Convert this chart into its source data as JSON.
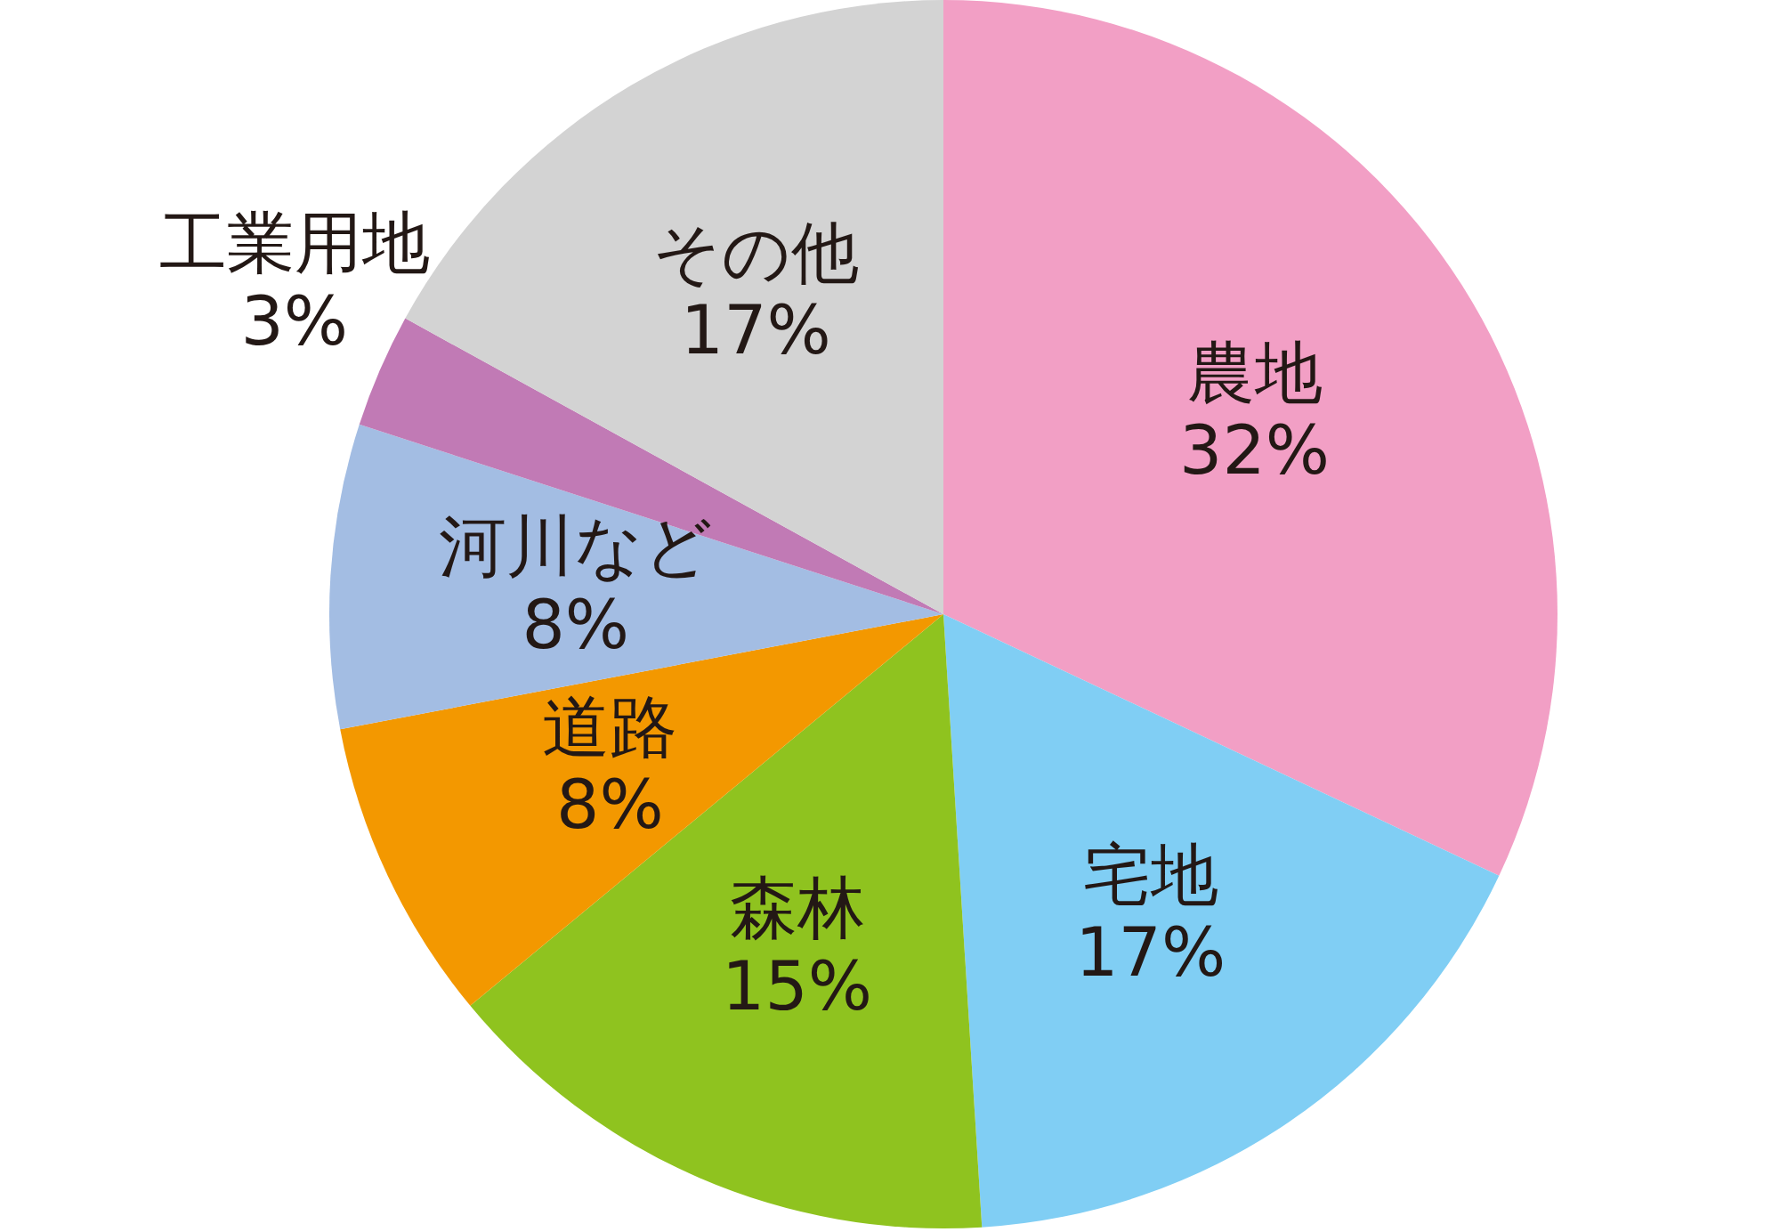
{
  "chart_data": {
    "type": "pie",
    "categories": [
      "農地",
      "宅地",
      "森林",
      "道路",
      "河川など",
      "工業用地",
      "その他"
    ],
    "values": [
      32,
      17,
      15,
      8,
      8,
      3,
      17
    ],
    "value_labels": [
      "32%",
      "17%",
      "15%",
      "8%",
      "8%",
      "3%",
      "17%"
    ],
    "colors": [
      "#f29fc5",
      "#80cef4",
      "#8fc31f",
      "#f39800",
      "#a3bde3",
      "#c17ab5",
      "#d3d3d3"
    ]
  }
}
